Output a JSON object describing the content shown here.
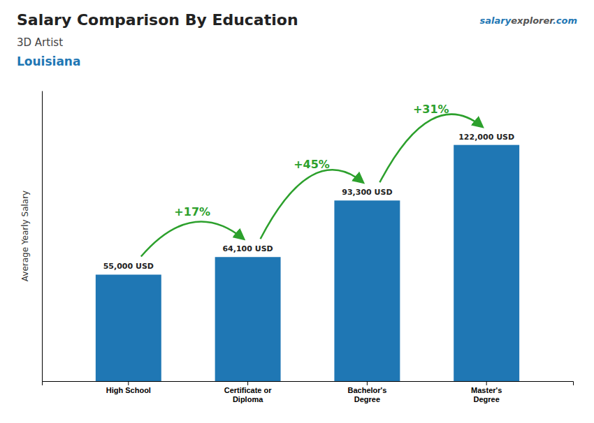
{
  "chart_data": {
    "type": "bar",
    "title": "Salary Comparison By Education",
    "subtitle": [
      "3D Artist",
      "Louisiana"
    ],
    "watermark": [
      "salary",
      "explorer",
      ".com"
    ],
    "ylabel": "Average Yearly Salary",
    "categories": [
      "High School",
      "Certificate or\nDiploma",
      "Bachelor's\nDegree",
      "Master's\nDegree"
    ],
    "values": [
      55000,
      64100,
      93300,
      122000
    ],
    "value_labels": [
      "55,000 USD",
      "64,100 USD",
      "93,300 USD",
      "122,000 USD"
    ],
    "data_labels": true,
    "annotations": [
      "+17%",
      "+45%",
      "+31%"
    ],
    "ylim": [
      0,
      150000
    ],
    "tick_labels": "x",
    "grid": false
  }
}
